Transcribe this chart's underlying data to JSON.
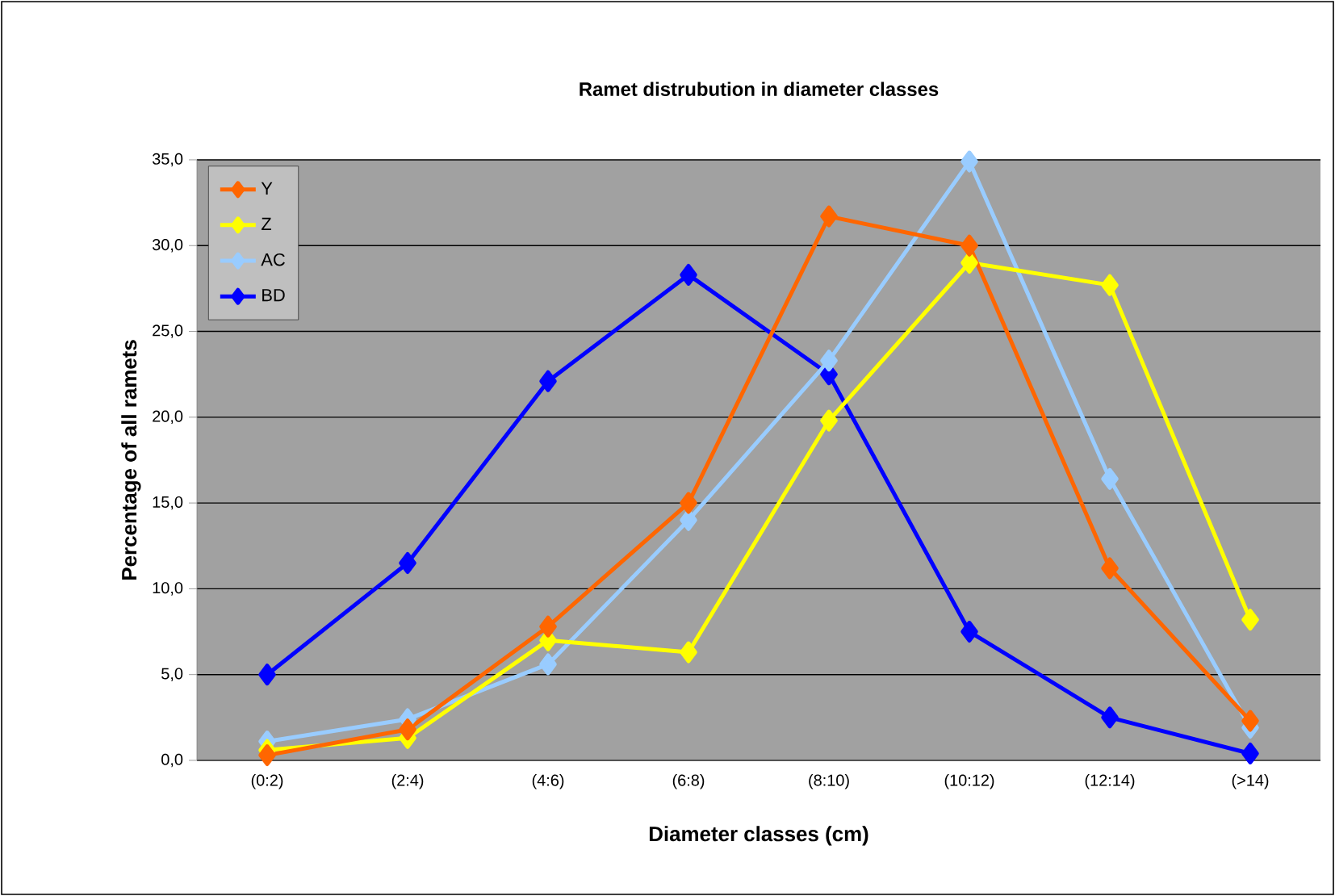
{
  "chart_data": {
    "type": "line",
    "title": "Ramet distrubution in diameter classes",
    "xlabel": "Diameter classes (cm)",
    "ylabel": "Percentage of all ramets",
    "categories": [
      "(0:2)",
      "(2:4)",
      "(4:6)",
      "(6:8)",
      "(8:10)",
      "(10:12)",
      "(12:14)",
      "(>14)"
    ],
    "series": [
      {
        "name": "Y",
        "color": "#ff6600",
        "values": [
          0.3,
          1.8,
          7.8,
          15.0,
          31.7,
          30.0,
          11.2,
          2.3
        ]
      },
      {
        "name": "Z",
        "color": "#ffff00",
        "values": [
          0.6,
          1.3,
          7.0,
          6.3,
          19.8,
          29.0,
          27.7,
          8.2
        ]
      },
      {
        "name": "AC",
        "color": "#99ccff",
        "values": [
          1.1,
          2.4,
          5.6,
          14.0,
          23.3,
          34.9,
          16.4,
          1.9
        ]
      },
      {
        "name": "BD",
        "color": "#0000ff",
        "values": [
          5.0,
          11.5,
          22.1,
          28.3,
          22.5,
          7.5,
          2.5,
          0.4
        ]
      }
    ],
    "ylim": [
      0,
      35
    ],
    "yticks": [
      {
        "value": 0,
        "label": "0,0"
      },
      {
        "value": 5,
        "label": "5,0"
      },
      {
        "value": 10,
        "label": "10,0"
      },
      {
        "value": 15,
        "label": "15,0"
      },
      {
        "value": 20,
        "label": "20,0"
      },
      {
        "value": 25,
        "label": "25,0"
      },
      {
        "value": 30,
        "label": "30,0"
      },
      {
        "value": 35,
        "label": "35,0"
      }
    ],
    "grid": "y",
    "legend": "top left",
    "marker": "diamond",
    "line_style": "solid"
  }
}
